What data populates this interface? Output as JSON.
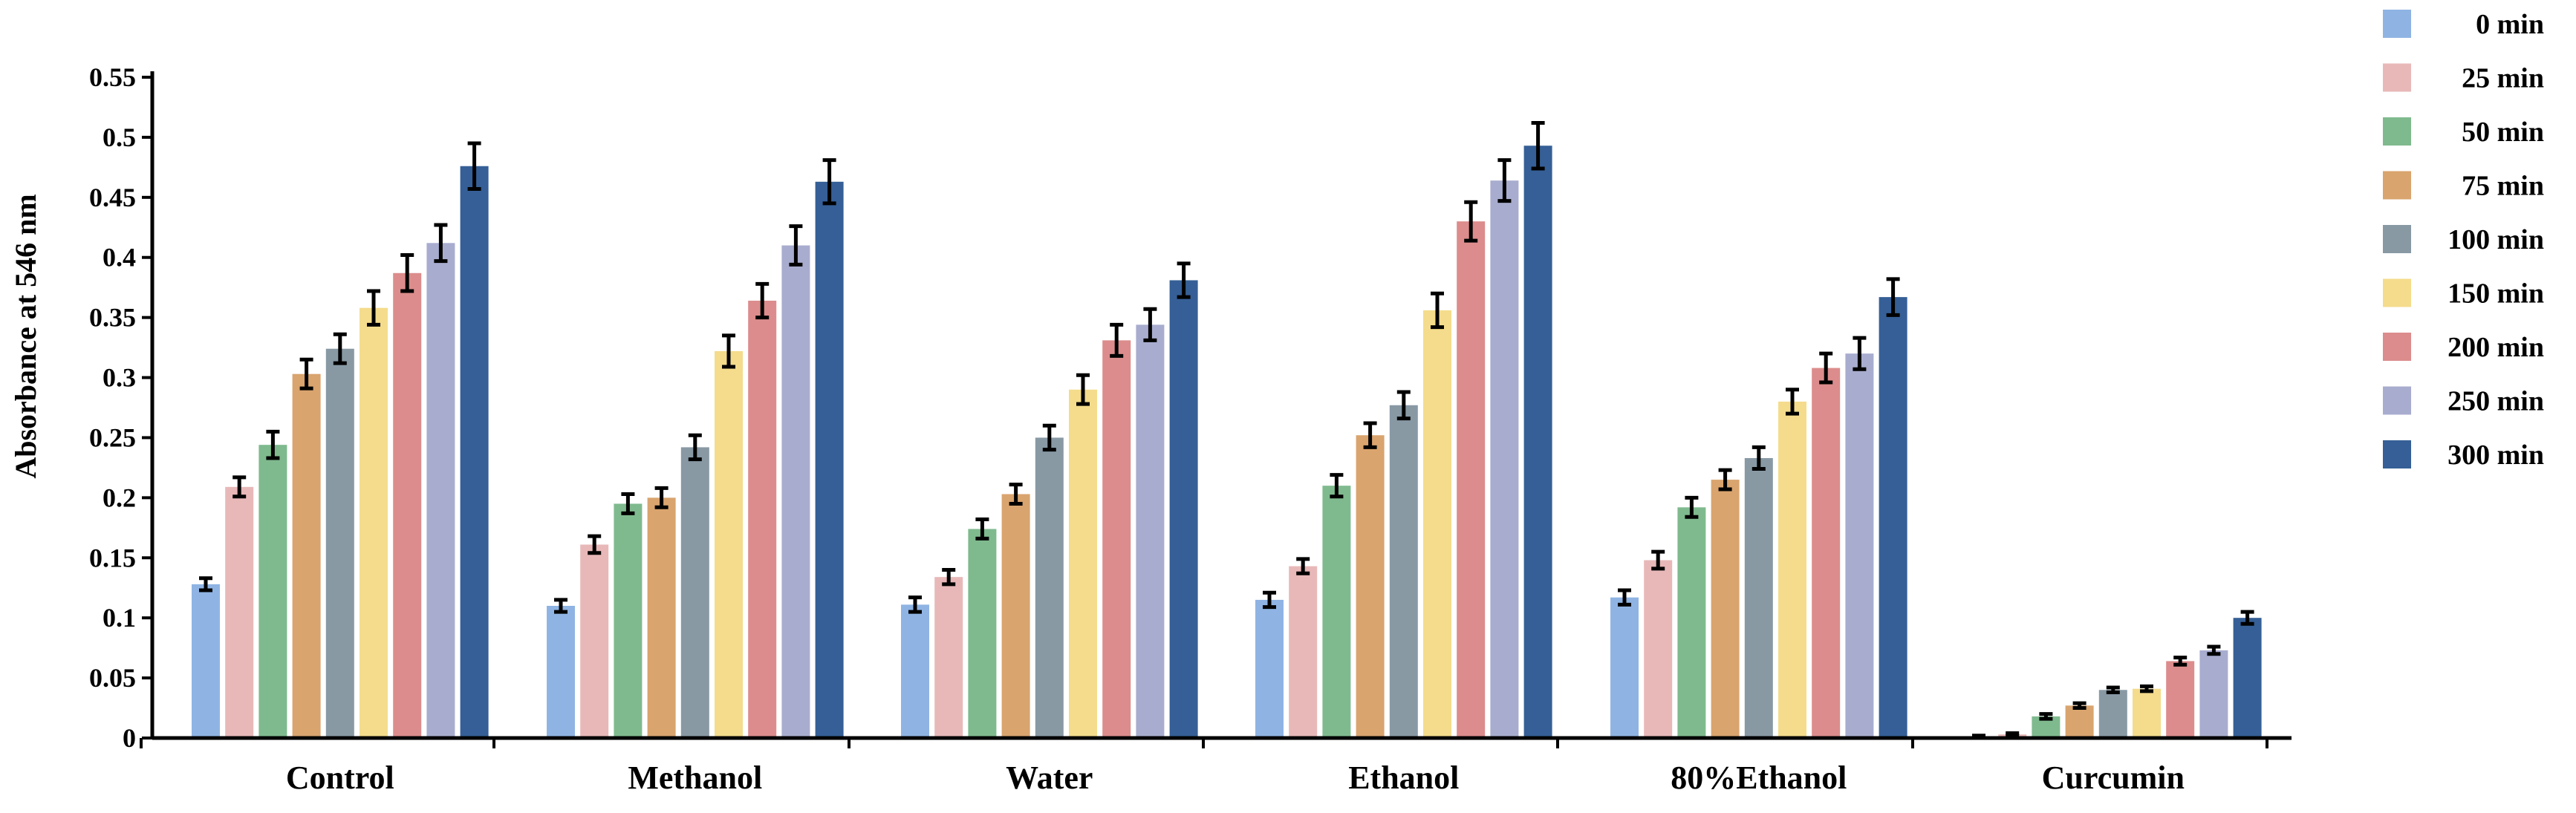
{
  "chart_data": {
    "type": "bar",
    "title": "",
    "xlabel": "",
    "ylabel": "Absorbance at 546 nm",
    "ylim": [
      0,
      0.55
    ],
    "yticks": [
      0,
      0.05,
      0.1,
      0.15,
      0.2,
      0.25,
      0.3,
      0.35,
      0.4,
      0.45,
      0.5,
      0.55
    ],
    "ytick_labels": [
      "0",
      "0.05",
      "0.1",
      "0.15",
      "0.2",
      "0.25",
      "0.3",
      "0.35",
      "0.4",
      "0.45",
      "0.5",
      "0.55"
    ],
    "grid": false,
    "legend_position": "top-right",
    "categories": [
      "Control",
      "Methanol",
      "Water",
      "Ethanol",
      "80%Ethanol",
      "Curcumin"
    ],
    "series": [
      {
        "name": "0 min",
        "color": "#8FB4E3",
        "values": [
          0.128,
          0.11,
          0.111,
          0.115,
          0.117,
          0.001
        ],
        "errors": [
          0.005,
          0.005,
          0.006,
          0.006,
          0.006,
          0.001
        ]
      },
      {
        "name": "25 min",
        "color": "#E8B8B8",
        "values": [
          0.209,
          0.161,
          0.134,
          0.143,
          0.148,
          0.003
        ],
        "errors": [
          0.008,
          0.007,
          0.006,
          0.006,
          0.007,
          0.001
        ]
      },
      {
        "name": "50 min",
        "color": "#7FBA8E",
        "values": [
          0.244,
          0.195,
          0.174,
          0.21,
          0.192,
          0.018
        ],
        "errors": [
          0.011,
          0.008,
          0.008,
          0.009,
          0.008,
          0.002
        ]
      },
      {
        "name": "75 min",
        "color": "#D9A46E",
        "values": [
          0.303,
          0.2,
          0.203,
          0.252,
          0.215,
          0.027
        ],
        "errors": [
          0.012,
          0.008,
          0.008,
          0.01,
          0.008,
          0.002
        ]
      },
      {
        "name": "100 min",
        "color": "#8899A4",
        "values": [
          0.324,
          0.242,
          0.25,
          0.277,
          0.233,
          0.04
        ],
        "errors": [
          0.012,
          0.01,
          0.01,
          0.011,
          0.009,
          0.002
        ]
      },
      {
        "name": "150 min",
        "color": "#F4DC8C",
        "values": [
          0.358,
          0.322,
          0.29,
          0.356,
          0.28,
          0.041
        ],
        "errors": [
          0.014,
          0.013,
          0.012,
          0.014,
          0.01,
          0.002
        ]
      },
      {
        "name": "200 min",
        "color": "#DC8C8C",
        "values": [
          0.387,
          0.364,
          0.331,
          0.43,
          0.308,
          0.064
        ],
        "errors": [
          0.015,
          0.014,
          0.013,
          0.016,
          0.012,
          0.003
        ]
      },
      {
        "name": "250 min",
        "color": "#A8ADCF",
        "values": [
          0.412,
          0.41,
          0.344,
          0.464,
          0.32,
          0.073
        ],
        "errors": [
          0.015,
          0.016,
          0.013,
          0.017,
          0.013,
          0.003
        ]
      },
      {
        "name": "300 min",
        "color": "#355F96",
        "values": [
          0.476,
          0.463,
          0.381,
          0.493,
          0.367,
          0.1
        ],
        "errors": [
          0.019,
          0.018,
          0.014,
          0.019,
          0.015,
          0.005
        ]
      }
    ]
  }
}
